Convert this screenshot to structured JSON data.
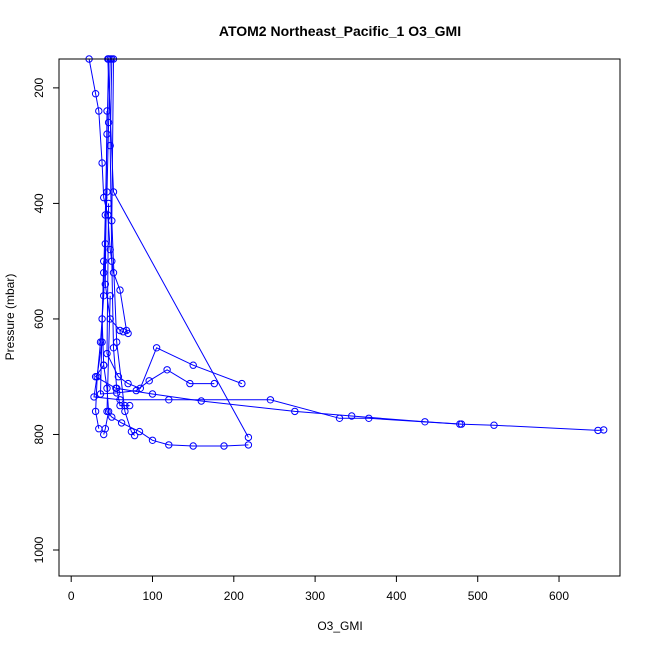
{
  "chart_data": {
    "type": "line",
    "title": "ATOM2 Northeast_Pacific_1 O3_GMI",
    "xlabel": "O3_GMI",
    "ylabel": "Pressure (mbar)",
    "xlim": [
      -15,
      675
    ],
    "ylim": [
      1045,
      150
    ],
    "y_reversed": true,
    "x_ticks": [
      0,
      100,
      200,
      300,
      400,
      500,
      600
    ],
    "y_ticks": [
      200,
      400,
      600,
      800,
      1000
    ],
    "grid": false,
    "color": "#0000ff",
    "marker": "open-circle",
    "series": [
      {
        "points": [
          [
            22,
            150
          ],
          [
            30,
            210
          ],
          [
            34,
            240
          ],
          [
            38,
            330
          ],
          [
            40,
            390
          ],
          [
            45,
            420
          ],
          [
            48,
            480
          ],
          [
            52,
            520
          ],
          [
            60,
            550
          ],
          [
            68,
            620
          ],
          [
            70,
            625
          ]
        ]
      },
      {
        "points": [
          [
            48,
            150
          ],
          [
            46,
            260
          ],
          [
            44,
            380
          ],
          [
            42,
            470
          ],
          [
            40,
            560
          ],
          [
            36,
            640
          ],
          [
            32,
            700
          ],
          [
            30,
            760
          ],
          [
            34,
            790
          ]
        ]
      },
      {
        "points": [
          [
            46,
            150
          ],
          [
            44,
            280
          ],
          [
            42,
            420
          ],
          [
            40,
            520
          ],
          [
            38,
            600
          ],
          [
            40,
            680
          ],
          [
            44,
            720
          ],
          [
            46,
            760
          ],
          [
            42,
            790
          ],
          [
            40,
            800
          ]
        ]
      },
      {
        "points": [
          [
            50,
            150
          ],
          [
            48,
            300
          ],
          [
            50,
            500
          ],
          [
            52,
            650
          ],
          [
            56,
            720
          ],
          [
            60,
            750
          ],
          [
            66,
            750
          ],
          [
            72,
            750
          ]
        ]
      },
      {
        "points": [
          [
            45,
            150
          ],
          [
            52,
            380
          ],
          [
            218,
            805
          ]
        ]
      },
      {
        "points": [
          [
            52,
            150
          ],
          [
            50,
            430
          ],
          [
            56,
            640
          ],
          [
            66,
            760
          ],
          [
            74,
            795
          ],
          [
            78,
            802
          ]
        ]
      },
      {
        "points": [
          [
            44,
            240
          ],
          [
            42,
            540
          ],
          [
            48,
            600
          ],
          [
            60,
            620
          ],
          [
            64,
            622
          ]
        ]
      },
      {
        "points": [
          [
            46,
            400
          ],
          [
            44,
            660
          ],
          [
            58,
            700
          ],
          [
            70,
            712
          ],
          [
            85,
            720
          ],
          [
            105,
            650
          ],
          [
            150,
            680
          ],
          [
            210,
            712
          ]
        ]
      },
      {
        "points": [
          [
            48,
            560
          ],
          [
            44,
            760
          ],
          [
            50,
            770
          ],
          [
            62,
            780
          ],
          [
            84,
            795
          ],
          [
            100,
            810
          ],
          [
            120,
            818
          ],
          [
            150,
            820
          ],
          [
            188,
            820
          ],
          [
            218,
            818
          ]
        ]
      },
      {
        "points": [
          [
            40,
            500
          ],
          [
            36,
            730
          ],
          [
            56,
            728
          ],
          [
            80,
            724
          ],
          [
            96,
            707
          ],
          [
            118,
            688
          ],
          [
            146,
            712
          ],
          [
            176,
            712
          ]
        ]
      },
      {
        "points": [
          [
            38,
            640
          ],
          [
            28,
            735
          ],
          [
            60,
            740
          ],
          [
            120,
            740
          ],
          [
            245,
            740
          ],
          [
            330,
            772
          ],
          [
            366,
            772
          ],
          [
            478,
            782
          ],
          [
            520,
            784
          ],
          [
            648,
            793
          ],
          [
            655,
            792
          ]
        ]
      },
      {
        "points": [
          [
            40,
            680
          ],
          [
            30,
            700
          ],
          [
            55,
            720
          ],
          [
            100,
            730
          ],
          [
            160,
            742
          ],
          [
            275,
            760
          ],
          [
            345,
            768
          ],
          [
            435,
            778
          ],
          [
            480,
            782
          ]
        ]
      }
    ]
  }
}
